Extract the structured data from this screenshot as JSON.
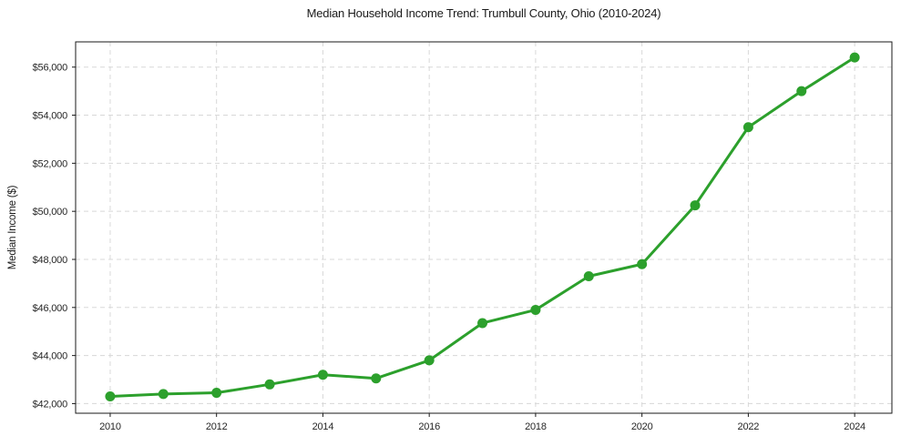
{
  "chart_data": {
    "type": "line",
    "title": "Median Household Income Trend: Trumbull County, Ohio (2010-2024)",
    "ylabel": "Median Income ($)",
    "xlabel": "",
    "x": [
      2010,
      2011,
      2012,
      2013,
      2014,
      2015,
      2016,
      2017,
      2018,
      2019,
      2020,
      2021,
      2022,
      2023,
      2024
    ],
    "values": [
      42300,
      42400,
      42450,
      42800,
      43200,
      43050,
      43800,
      45350,
      45900,
      47300,
      47800,
      50250,
      53500,
      55000,
      56400
    ],
    "x_ticks": [
      2010,
      2012,
      2014,
      2016,
      2018,
      2020,
      2022,
      2024
    ],
    "y_ticks": [
      42000,
      44000,
      46000,
      48000,
      50000,
      52000,
      54000,
      56000
    ],
    "y_tick_prefix": "$",
    "xlim": [
      2009.35,
      2024.7
    ],
    "ylim": [
      41600,
      57050
    ],
    "grid": true,
    "grid_style": "dashed",
    "legend": "none",
    "line_color": "#2ca02c",
    "marker": "circle",
    "colors": {
      "grid": "#d8d8d8",
      "axis": "#1a1a1a",
      "text": "#262626"
    }
  }
}
